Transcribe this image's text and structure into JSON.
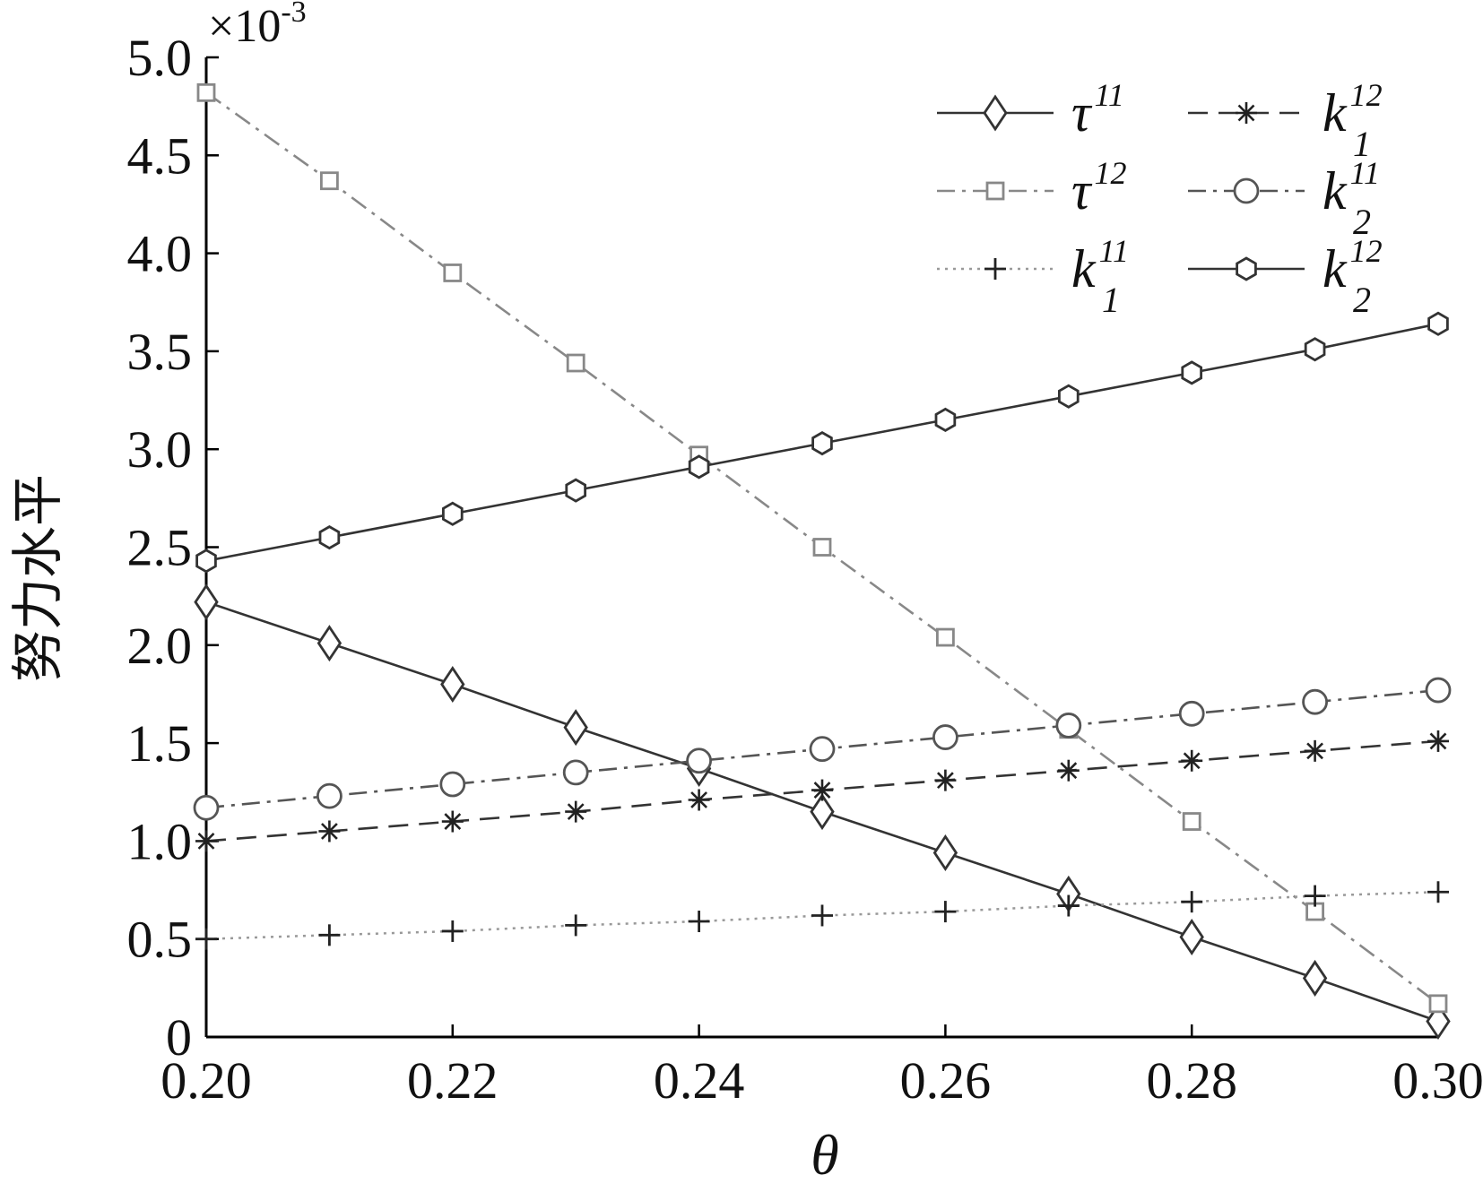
{
  "chart_data": {
    "type": "line",
    "xlabel": "θ",
    "ylabel": "努力水平",
    "y_multiplier": "×10",
    "y_multiplier_exp": "-3",
    "xlim": [
      0.2,
      0.3
    ],
    "ylim": [
      0,
      5.0
    ],
    "x_ticks": [
      "0.20",
      "0.22",
      "0.24",
      "0.26",
      "0.28",
      "0.30"
    ],
    "y_ticks": [
      "0",
      "0.5",
      "1.0",
      "1.5",
      "2.0",
      "2.5",
      "3.0",
      "3.5",
      "4.0",
      "4.5",
      "5.0"
    ],
    "grid": false,
    "legend_position": "top-right",
    "x": [
      0.2,
      0.21,
      0.22,
      0.23,
      0.24,
      0.25,
      0.26,
      0.27,
      0.28,
      0.29,
      0.3
    ],
    "series": [
      {
        "name": "τ11",
        "main": "τ",
        "sup": "11",
        "sub": "",
        "values": [
          2.22,
          2.01,
          1.8,
          1.58,
          1.37,
          1.15,
          0.94,
          0.73,
          0.51,
          0.3,
          0.08
        ],
        "line": "solid",
        "marker": "diamond",
        "color": "#333333"
      },
      {
        "name": "τ12",
        "main": "τ",
        "sup": "12",
        "sub": "",
        "values": [
          4.82,
          4.37,
          3.9,
          3.44,
          2.97,
          2.5,
          2.04,
          1.57,
          1.1,
          0.64,
          0.17
        ],
        "line": "dashdot",
        "marker": "square",
        "color": "#888888"
      },
      {
        "name": "k111",
        "main": "k",
        "sup": "11",
        "sub": "1",
        "values": [
          0.5,
          0.52,
          0.54,
          0.57,
          0.59,
          0.62,
          0.64,
          0.67,
          0.69,
          0.72,
          0.74
        ],
        "line": "dotted",
        "marker": "plus",
        "color": "#999999"
      },
      {
        "name": "k112",
        "main": "k",
        "sup": "12",
        "sub": "1",
        "values": [
          1.0,
          1.05,
          1.1,
          1.15,
          1.21,
          1.26,
          1.31,
          1.36,
          1.41,
          1.46,
          1.51
        ],
        "line": "dashed",
        "marker": "asterisk",
        "color": "#333333"
      },
      {
        "name": "k211",
        "main": "k",
        "sup": "11",
        "sub": "2",
        "values": [
          1.17,
          1.23,
          1.29,
          1.35,
          1.41,
          1.47,
          1.53,
          1.59,
          1.65,
          1.71,
          1.77
        ],
        "line": "dashdot",
        "marker": "circle",
        "color": "#555555"
      },
      {
        "name": "k212",
        "main": "k",
        "sup": "12",
        "sub": "2",
        "values": [
          2.43,
          2.55,
          2.67,
          2.79,
          2.91,
          3.03,
          3.15,
          3.27,
          3.39,
          3.51,
          3.64
        ],
        "line": "solid",
        "marker": "hexagon",
        "color": "#333333"
      }
    ]
  }
}
